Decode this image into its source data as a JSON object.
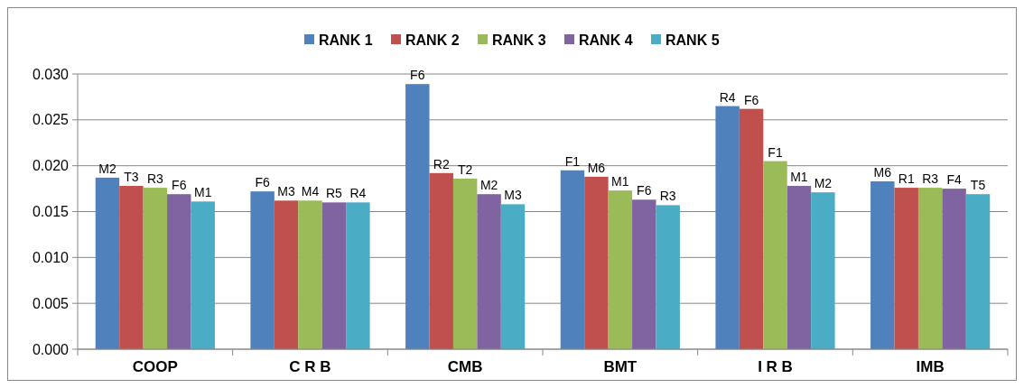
{
  "chart_data": {
    "type": "bar",
    "categories": [
      "COOP",
      "C R B",
      "CMB",
      "BMT",
      "I R B",
      "IMB"
    ],
    "series": [
      {
        "name": "RANK 1",
        "color": "#4f81bd",
        "values": [
          0.0187,
          0.0172,
          0.0289,
          0.0195,
          0.0265,
          0.0183
        ],
        "value_labels": [
          "M2",
          "F6",
          "F6",
          "F1",
          "R4",
          "M6"
        ]
      },
      {
        "name": "RANK 2",
        "color": "#c0504d",
        "values": [
          0.0178,
          0.0162,
          0.0192,
          0.0188,
          0.0262,
          0.0176
        ],
        "value_labels": [
          "T3",
          "M3",
          "R2",
          "M6",
          "F6",
          "R1"
        ]
      },
      {
        "name": "RANK 3",
        "color": "#9bbb59",
        "values": [
          0.0176,
          0.0162,
          0.0186,
          0.0173,
          0.0205,
          0.0176
        ],
        "value_labels": [
          "R3",
          "M4",
          "T2",
          "M1",
          "F1",
          "R3"
        ]
      },
      {
        "name": "RANK 4",
        "color": "#8064a2",
        "values": [
          0.0169,
          0.016,
          0.0169,
          0.0163,
          0.0178,
          0.0175
        ],
        "value_labels": [
          "F6",
          "R5",
          "M2",
          "F6",
          "M1",
          "F4"
        ]
      },
      {
        "name": "RANK 5",
        "color": "#4bacc6",
        "values": [
          0.0161,
          0.016,
          0.0158,
          0.0157,
          0.0171,
          0.0169
        ],
        "value_labels": [
          "M1",
          "R4",
          "M3",
          "R3",
          "M2",
          "T5"
        ]
      }
    ],
    "ylim": [
      0,
      0.03
    ],
    "yticks": [
      {
        "value": 0,
        "label": "0.000"
      },
      {
        "value": 0.005,
        "label": "0.005"
      },
      {
        "value": 0.01,
        "label": "0.010"
      },
      {
        "value": 0.015,
        "label": "0.015"
      },
      {
        "value": 0.02,
        "label": "0.020"
      },
      {
        "value": 0.025,
        "label": "0.025"
      },
      {
        "value": 0.03,
        "label": "0.030"
      }
    ],
    "grid": "y",
    "legend": "top"
  }
}
